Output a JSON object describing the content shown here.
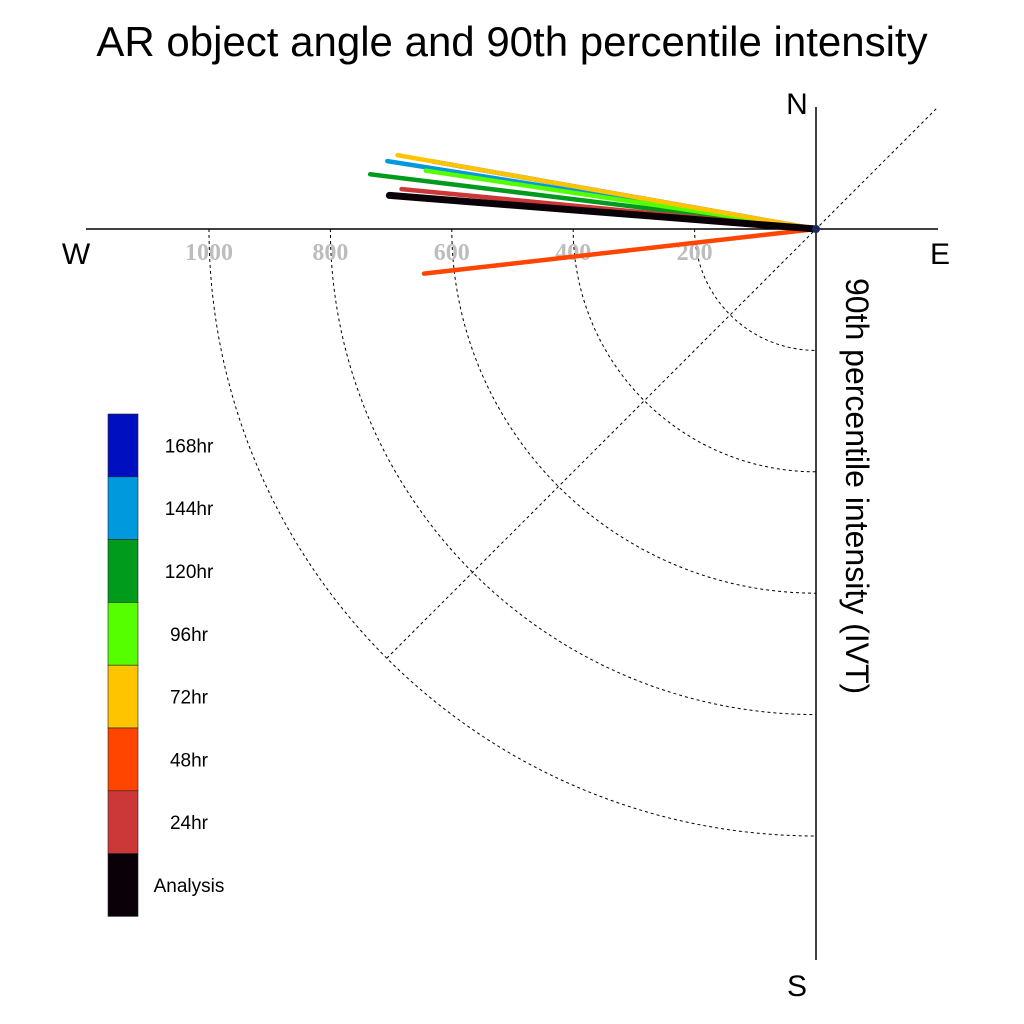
{
  "chart_data": {
    "type": "polar-vector",
    "title": "AR object angle and 90th percentile intensity",
    "axis_label": "90th percentile intensity (IVT)",
    "compass": {
      "north": "N",
      "south": "S",
      "east": "E",
      "west": "W"
    },
    "radial_ticks": [
      {
        "label": "200",
        "value": 200
      },
      {
        "label": "400",
        "value": 400
      },
      {
        "label": "600",
        "value": 600
      },
      {
        "label": "800",
        "value": 800
      },
      {
        "label": "1000",
        "value": 1000
      }
    ],
    "radial_max": 1000,
    "grid": true,
    "legend_position": "left",
    "series": [
      {
        "name": "168hr",
        "color": "#0010c0",
        "angle_deg": 170.0,
        "intensity": 640
      },
      {
        "name": "144hr",
        "color": "#0099dd",
        "angle_deg": 171.0,
        "intensity": 715
      },
      {
        "name": "120hr",
        "color": "#009b1c",
        "angle_deg": 173.0,
        "intensity": 740
      },
      {
        "name": "96hr",
        "color": "#55ff00",
        "angle_deg": 171.5,
        "intensity": 650
      },
      {
        "name": "72hr",
        "color": "#ffc400",
        "angle_deg": 170.0,
        "intensity": 700
      },
      {
        "name": "48hr",
        "color": "#ff4500",
        "angle_deg": 186.5,
        "intensity": 650
      },
      {
        "name": "24hr",
        "color": "#cc3838",
        "angle_deg": 174.5,
        "intensity": 686
      },
      {
        "name": "Analysis",
        "color": "#0a0008",
        "angle_deg": 175.5,
        "intensity": 705
      }
    ]
  }
}
